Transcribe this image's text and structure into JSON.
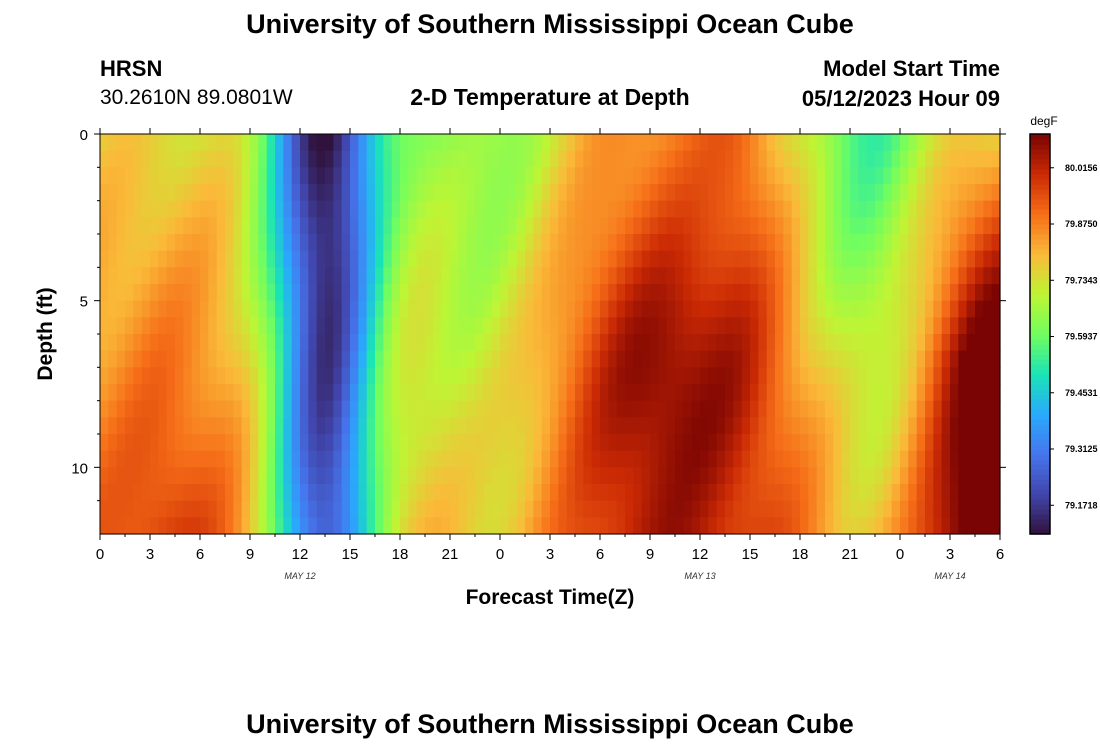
{
  "header": {
    "title": "University of Southern Mississippi Ocean Cube",
    "station": "HRSN",
    "coordinates": "30.2610N  89.0801W",
    "plot_title": "2-D Temperature at Depth",
    "model_start_label": "Model Start Time",
    "model_start_value": "05/12/2023 Hour 09"
  },
  "footer": {
    "title": "University of Southern Mississippi Ocean Cube"
  },
  "chart_data": {
    "type": "heatmap",
    "title": "2-D Temperature at Depth",
    "xlabel": "Forecast Time(Z)",
    "ylabel": "Depth (ft)",
    "x_tick_labels": [
      "0",
      "3",
      "6",
      "9",
      "12",
      "15",
      "18",
      "21",
      "0",
      "3",
      "6",
      "9",
      "12",
      "15",
      "18",
      "21",
      "0",
      "3",
      "6"
    ],
    "x_hours": [
      0,
      3,
      6,
      9,
      12,
      15,
      18,
      21,
      24,
      27,
      30,
      33,
      36,
      39,
      42,
      45,
      48,
      51,
      54
    ],
    "xlim": [
      0,
      54
    ],
    "date_labels": [
      {
        "label": "MAY 12",
        "hour": 12
      },
      {
        "label": "MAY 13",
        "hour": 36
      },
      {
        "label": "MAY 14",
        "hour": 51
      }
    ],
    "y_tick_labels": [
      "0",
      "5",
      "10"
    ],
    "y_ticks": [
      0,
      5,
      10
    ],
    "ylim": [
      0,
      12
    ],
    "colorbar": {
      "unit": "degF",
      "tick_labels": [
        "80.0156",
        "79.8750",
        "79.7343",
        "79.5937",
        "79.4531",
        "79.3125",
        "79.1718"
      ],
      "tick_values": [
        80.0156,
        79.875,
        79.7343,
        79.5937,
        79.4531,
        79.3125,
        79.1718
      ],
      "range": [
        79.1,
        80.1
      ]
    },
    "grid": false,
    "legend_position": "right"
  }
}
